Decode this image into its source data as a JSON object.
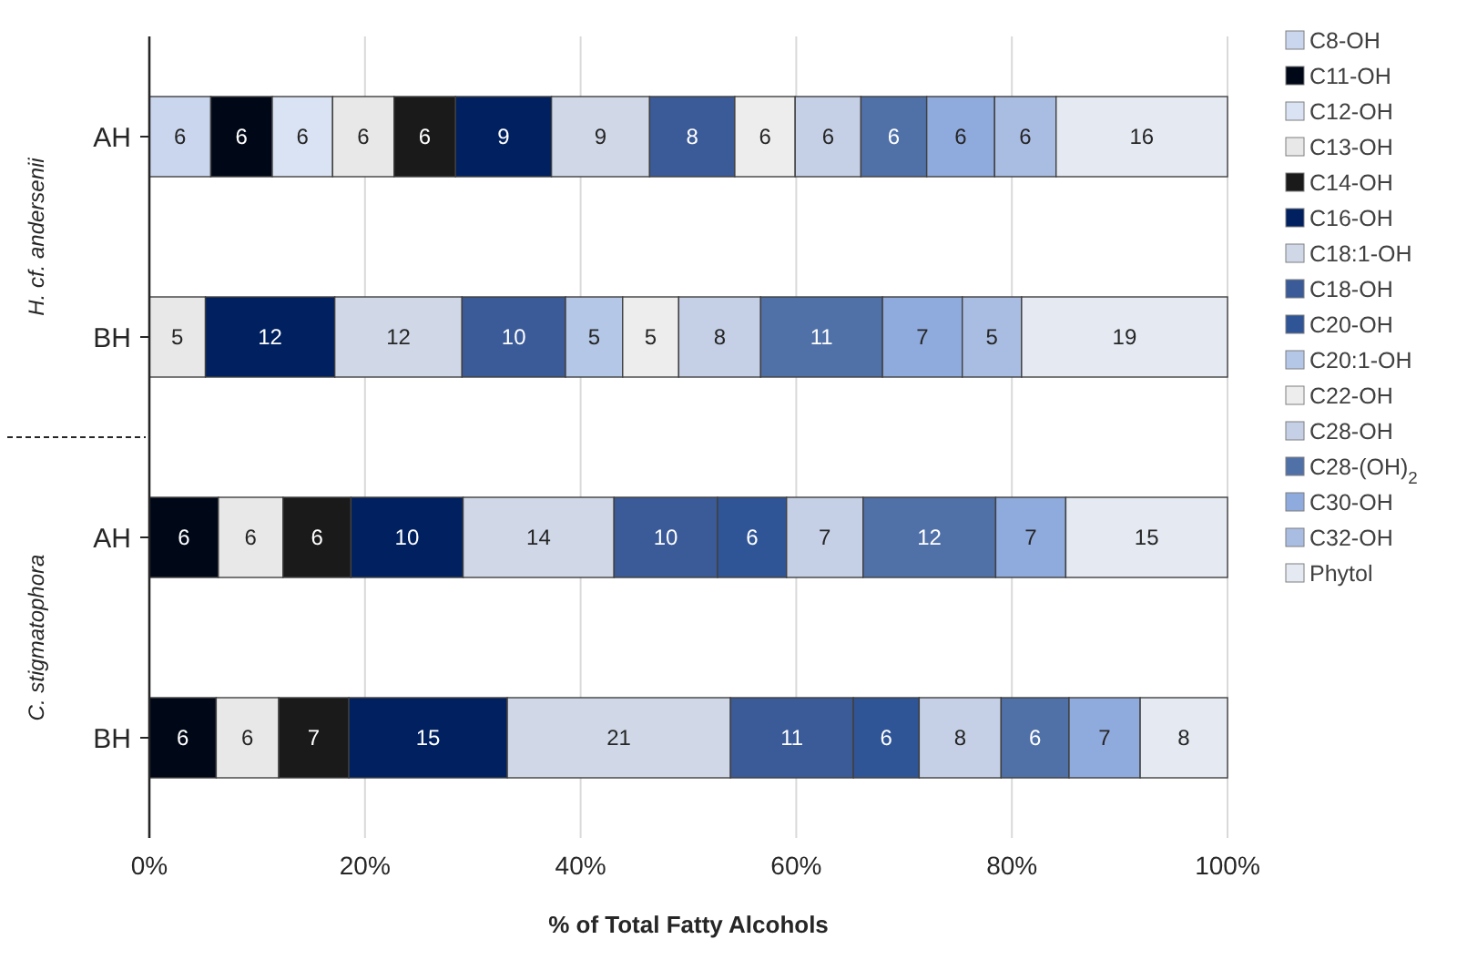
{
  "chart_data": {
    "type": "bar",
    "orientation": "horizontal",
    "stacked": true,
    "xlabel": "% of Total Fatty Alcohols",
    "categories": [
      "AH",
      "BH",
      "AH",
      "BH"
    ],
    "annotations": [
      "H. cf. andersenii",
      "C. stigmatophora"
    ],
    "xlim": [
      0,
      100
    ],
    "xticks": [
      {
        "value": 0,
        "label": "0%"
      },
      {
        "value": 20,
        "label": "20%"
      },
      {
        "value": 40,
        "label": "40%"
      },
      {
        "value": 60,
        "label": "60%"
      },
      {
        "value": 80,
        "label": "80%"
      },
      {
        "value": 100,
        "label": "100%"
      }
    ],
    "grid": "x",
    "legend": "right",
    "series": [
      {
        "name": "C8-OH",
        "color": "#c9d6ee",
        "values": [
          5.7,
          null,
          null,
          null
        ],
        "value_labels": [
          "6",
          null,
          null,
          null
        ]
      },
      {
        "name": "C11-OH",
        "color": "#000818",
        "values": [
          5.7,
          null,
          6.4,
          6.2
        ],
        "value_labels": [
          "6",
          null,
          "6",
          "6"
        ]
      },
      {
        "name": "C12-OH",
        "color": "#dae3f3",
        "values": [
          5.6,
          null,
          null,
          null
        ],
        "value_labels": [
          "6",
          null,
          null,
          null
        ]
      },
      {
        "name": "C13-OH",
        "color": "#e8e8e8",
        "values": [
          5.7,
          5.2,
          6.0,
          5.8
        ],
        "value_labels": [
          "6",
          "5",
          "6",
          "6"
        ]
      },
      {
        "name": "C14-OH",
        "color": "#1a1a1a",
        "values": [
          5.7,
          null,
          6.3,
          6.5
        ],
        "value_labels": [
          "6",
          null,
          "6",
          "7"
        ]
      },
      {
        "name": "C16-OH",
        "color": "#002060",
        "values": [
          8.9,
          12.0,
          10.4,
          14.7
        ],
        "value_labels": [
          "9",
          "12",
          "10",
          "15"
        ]
      },
      {
        "name": "C18:1-OH",
        "color": "#d0d8e8",
        "values": [
          9.1,
          11.8,
          14.0,
          20.7
        ],
        "value_labels": [
          "9",
          "12",
          "14",
          "21"
        ]
      },
      {
        "name": "C18-OH",
        "color": "#3a5a98",
        "values": [
          7.9,
          9.6,
          9.6,
          11.4
        ],
        "value_labels": [
          "8",
          "10",
          "10",
          "11"
        ]
      },
      {
        "name": "C20-OH",
        "color": "#2f5597",
        "values": [
          null,
          null,
          6.4,
          6.1
        ],
        "value_labels": [
          null,
          null,
          "6",
          "6"
        ]
      },
      {
        "name": "C20:1-OH",
        "color": "#b4c7e7",
        "values": [
          null,
          5.3,
          null,
          null
        ],
        "value_labels": [
          null,
          "5",
          null,
          null
        ]
      },
      {
        "name": "C22-OH",
        "color": "#ededed",
        "values": [
          5.6,
          5.2,
          null,
          null
        ],
        "value_labels": [
          "6",
          "5",
          null,
          null
        ]
      },
      {
        "name": "C28-OH",
        "color": "#c5d0e6",
        "values": [
          6.1,
          7.6,
          7.1,
          7.6
        ],
        "value_labels": [
          "6",
          "8",
          "7",
          "8"
        ]
      },
      {
        "name": "C28-(OH)$_{2}$",
        "color": "#5070a8",
        "values": [
          6.1,
          11.3,
          12.3,
          6.3
        ],
        "value_labels": [
          "6",
          "11",
          "12",
          "6"
        ]
      },
      {
        "name": "C30-OH",
        "color": "#8faadc",
        "values": [
          6.3,
          7.4,
          6.5,
          6.6
        ],
        "value_labels": [
          "6",
          "7",
          "7",
          "7"
        ]
      },
      {
        "name": "C32-OH",
        "color": "#a9bde3",
        "values": [
          5.7,
          5.5,
          null,
          null
        ],
        "value_labels": [
          "6",
          "5",
          null,
          null
        ]
      },
      {
        "name": "Phytol",
        "color": "#e4e9f2",
        "values": [
          15.9,
          19.1,
          15.0,
          8.1
        ],
        "value_labels": [
          "16",
          "19",
          "15",
          "8"
        ]
      }
    ]
  }
}
